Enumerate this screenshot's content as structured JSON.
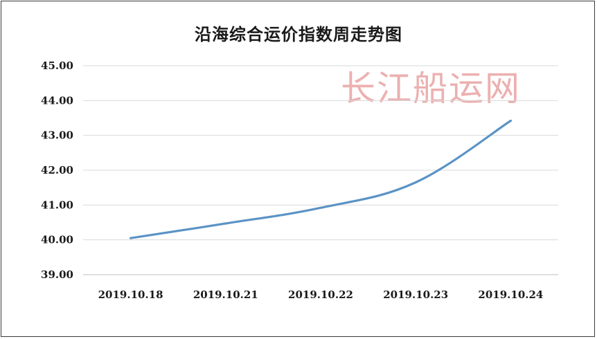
{
  "watermark": "长江船运网",
  "chart_data": {
    "type": "line",
    "title": "沿海综合运价指数周走势图",
    "xlabel": "",
    "ylabel": "",
    "categories": [
      "2019.10.18",
      "2019.10.21",
      "2019.10.22",
      "2019.10.23",
      "2019.10.24"
    ],
    "series": [
      {
        "values": [
          40.05,
          40.47,
          40.92,
          41.65,
          43.42
        ]
      }
    ],
    "ylim": [
      39,
      45
    ],
    "yticks": [
      "39.00",
      "40.00",
      "41.00",
      "42.00",
      "43.00",
      "44.00",
      "45.00"
    ],
    "grid": true,
    "legend": "none",
    "line_color": "#5b93c6",
    "grid_color": "#d9d9d9"
  }
}
